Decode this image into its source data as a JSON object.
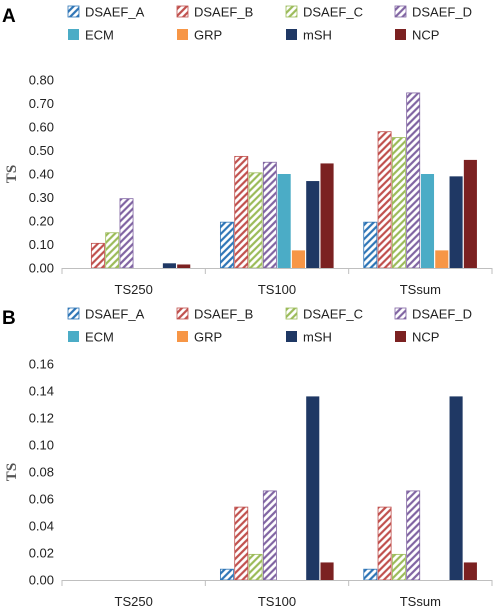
{
  "series_styles": [
    {
      "key": "DSAEF_A",
      "color": "#2e75b6",
      "pattern": "hatch"
    },
    {
      "key": "DSAEF_B",
      "color": "#c0504d",
      "pattern": "hatch"
    },
    {
      "key": "DSAEF_C",
      "color": "#9bbb59",
      "pattern": "hatch"
    },
    {
      "key": "DSAEF_D",
      "color": "#8064a2",
      "pattern": "hatch"
    },
    {
      "key": "ECM",
      "color": "#4bacc6",
      "pattern": "solid"
    },
    {
      "key": "GRP",
      "color": "#f79646",
      "pattern": "solid"
    },
    {
      "key": "mSH",
      "color": "#1f3864",
      "pattern": "solid"
    },
    {
      "key": "NCP",
      "color": "#7b2121",
      "pattern": "solid"
    }
  ],
  "chart_data": [
    {
      "panel": "A",
      "type": "bar",
      "ylabel": "TS",
      "categories": [
        "TS250",
        "TS100",
        "TSsum"
      ],
      "ylim": [
        0,
        0.8
      ],
      "yticks": [
        "0.00",
        "0.10",
        "0.20",
        "0.30",
        "0.40",
        "0.50",
        "0.60",
        "0.70",
        "0.80"
      ],
      "grid": false,
      "legend": "top",
      "series": [
        {
          "name": "DSAEF_A",
          "values": [
            0,
            0.195,
            0.195
          ]
        },
        {
          "name": "DSAEF_B",
          "values": [
            0.105,
            0.475,
            0.58
          ]
        },
        {
          "name": "DSAEF_C",
          "values": [
            0.15,
            0.405,
            0.555
          ]
        },
        {
          "name": "DSAEF_D",
          "values": [
            0.295,
            0.45,
            0.745
          ]
        },
        {
          "name": "ECM",
          "values": [
            0,
            0.4,
            0.4
          ]
        },
        {
          "name": "GRP",
          "values": [
            0,
            0.075,
            0.075
          ]
        },
        {
          "name": "mSH",
          "values": [
            0.02,
            0.37,
            0.39
          ]
        },
        {
          "name": "NCP",
          "values": [
            0.015,
            0.445,
            0.46
          ]
        }
      ]
    },
    {
      "panel": "B",
      "type": "bar",
      "ylabel": "TS",
      "categories": [
        "TS250",
        "TS100",
        "TSsum"
      ],
      "ylim": [
        0,
        0.16
      ],
      "yticks": [
        "0.00",
        "0.02",
        "0.04",
        "0.06",
        "0.08",
        "0.10",
        "0.12",
        "0.14",
        "0.16"
      ],
      "grid": false,
      "legend": "top",
      "series": [
        {
          "name": "DSAEF_A",
          "values": [
            0,
            0.008,
            0.008
          ]
        },
        {
          "name": "DSAEF_B",
          "values": [
            0,
            0.054,
            0.054
          ]
        },
        {
          "name": "DSAEF_C",
          "values": [
            0,
            0.019,
            0.019
          ]
        },
        {
          "name": "DSAEF_D",
          "values": [
            0,
            0.066,
            0.066
          ]
        },
        {
          "name": "ECM",
          "values": [
            0,
            0,
            0
          ]
        },
        {
          "name": "GRP",
          "values": [
            0,
            0,
            0
          ]
        },
        {
          "name": "mSH",
          "values": [
            0,
            0.136,
            0.136
          ]
        },
        {
          "name": "NCP",
          "values": [
            0,
            0.013,
            0.013
          ]
        }
      ]
    }
  ]
}
